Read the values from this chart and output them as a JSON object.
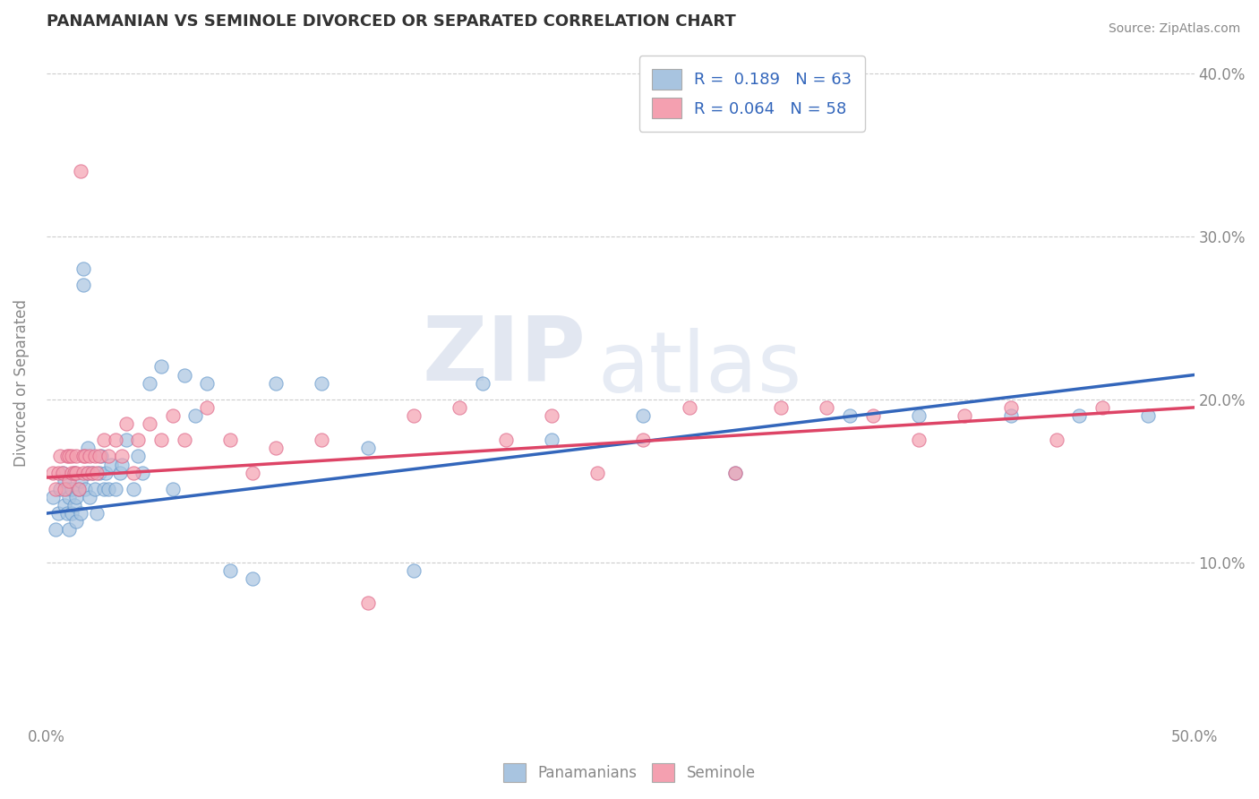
{
  "title": "PANAMANIAN VS SEMINOLE DIVORCED OR SEPARATED CORRELATION CHART",
  "source_text": "Source: ZipAtlas.com",
  "xlabel_label": "Panamanians",
  "ylabel_label": "Divorced or Separated",
  "xlim": [
    0.0,
    0.5
  ],
  "ylim": [
    0.0,
    0.42
  ],
  "xticks": [
    0.0,
    0.05,
    0.1,
    0.15,
    0.2,
    0.25,
    0.3,
    0.35,
    0.4,
    0.45,
    0.5
  ],
  "yticks": [
    0.0,
    0.1,
    0.2,
    0.3,
    0.4
  ],
  "blue_color": "#a8c4e0",
  "blue_edge_color": "#6699cc",
  "pink_color": "#f4a0b0",
  "pink_edge_color": "#dd6688",
  "blue_line_color": "#3366bb",
  "pink_line_color": "#dd4466",
  "legend_text1": "R =  0.189   N = 63",
  "legend_text2": "R = 0.064   N = 58",
  "watermark_zip": "ZIP",
  "watermark_atlas": "atlas",
  "background_color": "#ffffff",
  "grid_color": "#cccccc",
  "title_color": "#333333",
  "axis_color": "#888888",
  "blue_scatter_x": [
    0.003,
    0.004,
    0.005,
    0.006,
    0.007,
    0.008,
    0.008,
    0.009,
    0.009,
    0.01,
    0.01,
    0.011,
    0.011,
    0.012,
    0.012,
    0.013,
    0.013,
    0.014,
    0.015,
    0.015,
    0.016,
    0.016,
    0.017,
    0.018,
    0.018,
    0.019,
    0.02,
    0.021,
    0.022,
    0.023,
    0.024,
    0.025,
    0.026,
    0.027,
    0.028,
    0.03,
    0.032,
    0.033,
    0.035,
    0.038,
    0.04,
    0.042,
    0.045,
    0.05,
    0.055,
    0.06,
    0.065,
    0.07,
    0.08,
    0.09,
    0.1,
    0.12,
    0.14,
    0.16,
    0.19,
    0.22,
    0.26,
    0.3,
    0.35,
    0.38,
    0.42,
    0.45,
    0.48
  ],
  "blue_scatter_y": [
    0.14,
    0.12,
    0.13,
    0.145,
    0.155,
    0.135,
    0.15,
    0.13,
    0.145,
    0.12,
    0.14,
    0.13,
    0.145,
    0.135,
    0.155,
    0.125,
    0.14,
    0.145,
    0.13,
    0.15,
    0.27,
    0.28,
    0.145,
    0.155,
    0.17,
    0.14,
    0.155,
    0.145,
    0.13,
    0.155,
    0.165,
    0.145,
    0.155,
    0.145,
    0.16,
    0.145,
    0.155,
    0.16,
    0.175,
    0.145,
    0.165,
    0.155,
    0.21,
    0.22,
    0.145,
    0.215,
    0.19,
    0.21,
    0.095,
    0.09,
    0.21,
    0.21,
    0.17,
    0.095,
    0.21,
    0.175,
    0.19,
    0.155,
    0.19,
    0.19,
    0.19,
    0.19,
    0.19
  ],
  "pink_scatter_x": [
    0.003,
    0.004,
    0.005,
    0.006,
    0.007,
    0.008,
    0.009,
    0.01,
    0.01,
    0.011,
    0.011,
    0.012,
    0.013,
    0.013,
    0.014,
    0.015,
    0.016,
    0.016,
    0.017,
    0.018,
    0.019,
    0.02,
    0.021,
    0.022,
    0.023,
    0.025,
    0.027,
    0.03,
    0.033,
    0.035,
    0.038,
    0.04,
    0.045,
    0.05,
    0.055,
    0.06,
    0.07,
    0.08,
    0.09,
    0.1,
    0.12,
    0.14,
    0.16,
    0.18,
    0.2,
    0.22,
    0.24,
    0.26,
    0.28,
    0.3,
    0.32,
    0.34,
    0.36,
    0.38,
    0.4,
    0.42,
    0.44,
    0.46
  ],
  "pink_scatter_y": [
    0.155,
    0.145,
    0.155,
    0.165,
    0.155,
    0.145,
    0.165,
    0.15,
    0.165,
    0.155,
    0.165,
    0.155,
    0.165,
    0.155,
    0.145,
    0.34,
    0.155,
    0.165,
    0.165,
    0.155,
    0.165,
    0.155,
    0.165,
    0.155,
    0.165,
    0.175,
    0.165,
    0.175,
    0.165,
    0.185,
    0.155,
    0.175,
    0.185,
    0.175,
    0.19,
    0.175,
    0.195,
    0.175,
    0.155,
    0.17,
    0.175,
    0.075,
    0.19,
    0.195,
    0.175,
    0.19,
    0.155,
    0.175,
    0.195,
    0.155,
    0.195,
    0.195,
    0.19,
    0.175,
    0.19,
    0.195,
    0.175,
    0.195
  ]
}
